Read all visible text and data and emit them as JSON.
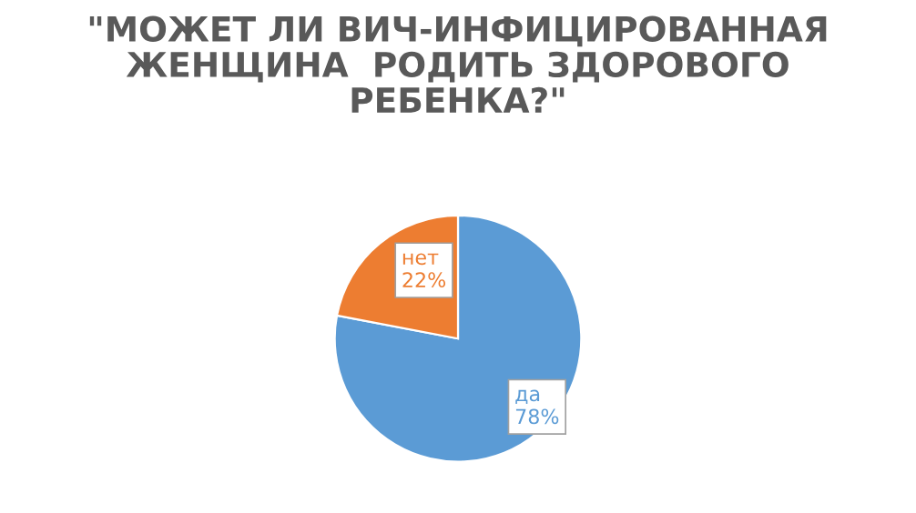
{
  "chart_data": {
    "type": "pie",
    "title": "\"МОЖЕТ ЛИ ВИЧ-ИНФИЦИРОВАННАЯ\nЖЕНЩИНА  РОДИТЬ ЗДОРОВОГО\nРЕБЕНКА?\"",
    "categories": [
      "да",
      "нет"
    ],
    "values": [
      78,
      22
    ],
    "value_labels": [
      "78%",
      "22%"
    ],
    "colors": [
      "#5b9bd5",
      "#ed7d31"
    ]
  }
}
